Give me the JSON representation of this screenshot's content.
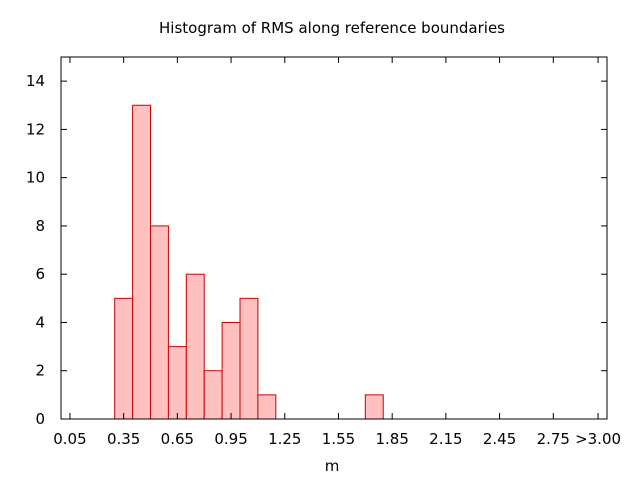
{
  "chart_data": {
    "type": "bar",
    "title": "Histogram of RMS along reference boundaries",
    "xlabel": "m",
    "ylabel": "",
    "ylim": [
      0,
      15
    ],
    "xlim": [
      0,
      3.05
    ],
    "y_ticks": [
      0,
      2,
      4,
      6,
      8,
      10,
      12,
      14
    ],
    "x_tick_labels": [
      {
        "value": 0.05,
        "label": "0.05"
      },
      {
        "value": 0.35,
        "label": "0.35"
      },
      {
        "value": 0.65,
        "label": "0.65"
      },
      {
        "value": 0.95,
        "label": "0.95"
      },
      {
        "value": 1.25,
        "label": "1.25"
      },
      {
        "value": 1.55,
        "label": "1.55"
      },
      {
        "value": 1.85,
        "label": "1.85"
      },
      {
        "value": 2.15,
        "label": "2.15"
      },
      {
        "value": 2.45,
        "label": "2.45"
      },
      {
        "value": 2.75,
        "label": "2.75"
      },
      {
        "value": 3.0,
        "label": ">3.00"
      }
    ],
    "bin_width": 0.1,
    "bins": [
      {
        "start": 0.3,
        "end": 0.4,
        "count": 5
      },
      {
        "start": 0.4,
        "end": 0.5,
        "count": 13
      },
      {
        "start": 0.5,
        "end": 0.6,
        "count": 8
      },
      {
        "start": 0.6,
        "end": 0.7,
        "count": 3
      },
      {
        "start": 0.7,
        "end": 0.8,
        "count": 6
      },
      {
        "start": 0.8,
        "end": 0.9,
        "count": 2
      },
      {
        "start": 0.9,
        "end": 1.0,
        "count": 4
      },
      {
        "start": 1.0,
        "end": 1.1,
        "count": 5
      },
      {
        "start": 1.1,
        "end": 1.2,
        "count": 1
      },
      {
        "start": 1.7,
        "end": 1.8,
        "count": 1
      }
    ],
    "grid": false,
    "legend": "none",
    "colors": {
      "bar_fill": "#ffc0c0",
      "bar_stroke": "#cc0000",
      "axis": "#000000"
    }
  }
}
